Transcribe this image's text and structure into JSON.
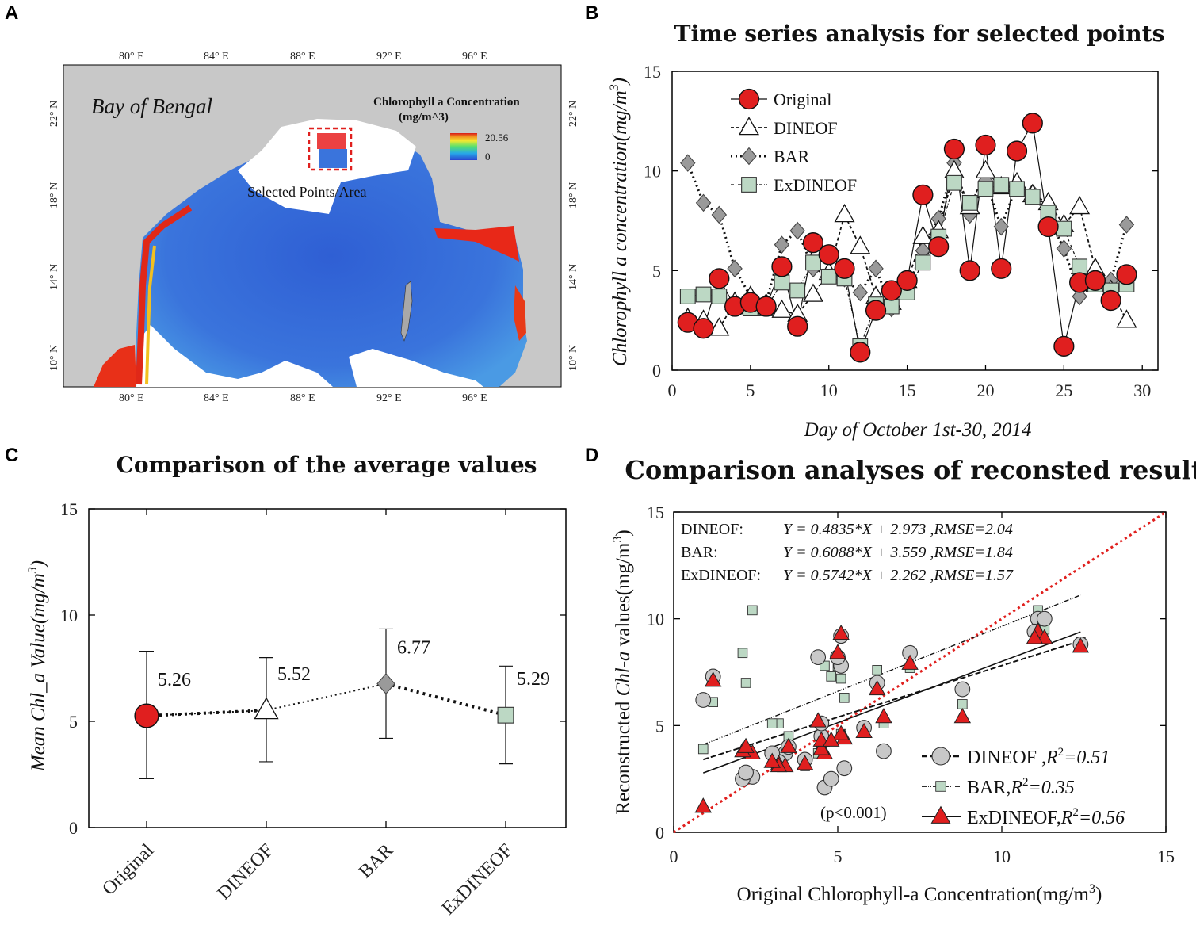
{
  "panel_labels": [
    "A",
    "B",
    "C",
    "D"
  ],
  "colors": {
    "original": "#e01f1f",
    "bar_marker": "#9a9a9a",
    "exdineof": "#bcd8c4",
    "land": "#c8c8c8",
    "ocean": "#3467d8",
    "dashed_box": "#e0201e",
    "identity_line": "#e0201e"
  },
  "map": {
    "title_region": "Bay of Bengal",
    "legend_title_line1": "Chlorophyll  a Concentration",
    "legend_title_line2": "(mg/m^3)",
    "legend_max": "20.56",
    "legend_min": "0",
    "selected_label": "Selected Points/Area",
    "lon_ticks": [
      "80° E",
      "84° E",
      "88° E",
      "92° E",
      "96° E"
    ],
    "lat_ticks": [
      "22° N",
      "18° N",
      "14° N",
      "10° N"
    ]
  },
  "chart_data": [
    {
      "panel": "B",
      "type": "line",
      "title": "Time series analysis for selected points",
      "xlabel": "Day of October 1st-30, 2014",
      "ylabel": "Chlorophyll a concentration(mg/m",
      "ylabel_sup": "3",
      "ylabel_end": ")",
      "xlim": [
        0,
        31
      ],
      "ylim": [
        0,
        15
      ],
      "xticks": [
        0,
        5,
        10,
        15,
        20,
        25,
        30
      ],
      "yticks": [
        0,
        5,
        10,
        15
      ],
      "x": [
        1,
        2,
        3,
        4,
        5,
        6,
        7,
        8,
        9,
        10,
        11,
        12,
        13,
        14,
        15,
        16,
        17,
        18,
        19,
        20,
        21,
        22,
        23,
        24,
        25,
        26,
        27,
        28,
        29
      ],
      "series": [
        {
          "name": "Original",
          "marker": "circle",
          "values": [
            2.4,
            2.1,
            4.6,
            3.2,
            3.4,
            3.2,
            5.2,
            2.2,
            6.4,
            5.8,
            5.1,
            0.9,
            3.0,
            4.0,
            4.5,
            8.8,
            6.2,
            11.1,
            5.0,
            11.3,
            5.1,
            11.0,
            12.4,
            7.2,
            1.2,
            4.4,
            4.5,
            3.5,
            4.8
          ]
        },
        {
          "name": "DINEOF",
          "marker": "triangle",
          "values": [
            2.6,
            2.5,
            2.1,
            3.4,
            3.7,
            3.3,
            3.0,
            2.8,
            3.8,
            4.9,
            7.8,
            6.2,
            3.7,
            3.4,
            4.5,
            6.7,
            7.0,
            10.0,
            8.2,
            10.0,
            9.2,
            9.4,
            8.8,
            8.4,
            7.3,
            8.2,
            5.1,
            4.0,
            2.5
          ]
        },
        {
          "name": "BAR",
          "marker": "diamond",
          "values": [
            10.4,
            8.4,
            7.8,
            5.1,
            3.7,
            3.4,
            6.3,
            7.0,
            5.1,
            4.8,
            4.6,
            3.9,
            5.1,
            3.1,
            4.1,
            6.0,
            7.6,
            10.4,
            7.8,
            9.5,
            7.2,
            9.3,
            8.9,
            7.7,
            6.1,
            3.7,
            4.4,
            4.5,
            7.3
          ]
        },
        {
          "name": "ExDINEOF",
          "marker": "square",
          "values": [
            3.7,
            3.8,
            3.7,
            3.2,
            3.1,
            3.1,
            4.4,
            4.0,
            5.4,
            4.7,
            4.6,
            1.2,
            3.3,
            3.2,
            3.9,
            5.4,
            6.7,
            9.4,
            8.4,
            9.1,
            9.3,
            9.1,
            8.7,
            7.9,
            7.1,
            5.2,
            4.3,
            4.0,
            4.3
          ]
        }
      ]
    },
    {
      "panel": "C",
      "type": "scatter",
      "title": "Comparison of the average values",
      "ylabel": "Mean Chl_a Value(mg/m",
      "ylabel_sup": "3",
      "ylabel_end": ")",
      "ylim": [
        0,
        15
      ],
      "yticks": [
        0,
        5,
        10,
        15
      ],
      "categories": [
        "Original",
        "DINEOF",
        "BAR",
        "ExDINEOF"
      ],
      "values": [
        5.26,
        5.52,
        6.77,
        5.29
      ],
      "labels": [
        "5.26",
        "5.52",
        "6.77",
        "5.29"
      ],
      "error_low": [
        2.3,
        3.1,
        4.2,
        3.0
      ],
      "error_high": [
        8.3,
        8.0,
        9.35,
        7.6
      ]
    },
    {
      "panel": "D",
      "type": "scatter",
      "title": "Comparison analyses of reconsted results",
      "xlabel": "Original Chlorophyll-a Concentration(mg/m",
      "xlabel_sup": "3",
      "xlabel_end": ")",
      "ylabel_pre": "Reconstructed ",
      "ylabel_ital": "Chl-a",
      "ylabel_post": " values(mg/m",
      "ylabel_sup": "3",
      "ylabel_end": ")",
      "xlim": [
        0,
        15
      ],
      "ylim": [
        0,
        15
      ],
      "xticks": [
        0,
        5,
        10,
        15
      ],
      "yticks": [
        0,
        5,
        10,
        15
      ],
      "p_note": "(p<0.001)",
      "equations": [
        {
          "name": "DINEOF:",
          "eq": "Y = 0.4835*X + 2.973 ,RMSE=2.04"
        },
        {
          "name": "BAR:",
          "eq": "Y = 0.6088*X + 3.559 ,RMSE=1.84"
        },
        {
          "name": "ExDINEOF:",
          "eq": "Y = 0.5742*X + 2.262 ,RMSE=1.57"
        }
      ],
      "legend": [
        {
          "name": "DINEOF ,",
          "r2": "R",
          "sup": "2",
          "val": "=0.51"
        },
        {
          "name": "BAR,",
          "r2": "R",
          "sup": "2",
          "val": "=0.35"
        },
        {
          "name": "ExDINEOF,",
          "r2": "R",
          "sup": "2",
          "val": "=0.56"
        }
      ],
      "fits": [
        {
          "name": "DINEOF",
          "slope": 0.4835,
          "intercept": 2.973,
          "x_range": [
            0.9,
            12.4
          ]
        },
        {
          "name": "BAR",
          "slope": 0.6088,
          "intercept": 3.559,
          "x_range": [
            0.9,
            12.4
          ]
        },
        {
          "name": "ExDINEOF",
          "slope": 0.5742,
          "intercept": 2.262,
          "x_range": [
            0.9,
            12.4
          ]
        }
      ],
      "points_x": [
        2.4,
        2.1,
        4.6,
        3.2,
        3.4,
        3.2,
        5.2,
        2.2,
        6.4,
        5.8,
        5.1,
        0.9,
        3.0,
        4.0,
        4.5,
        8.8,
        6.2,
        11.1,
        5.0,
        11.3,
        5.1,
        11.0,
        12.4,
        7.2,
        1.2,
        4.4,
        4.5,
        3.5,
        4.8
      ]
    }
  ]
}
